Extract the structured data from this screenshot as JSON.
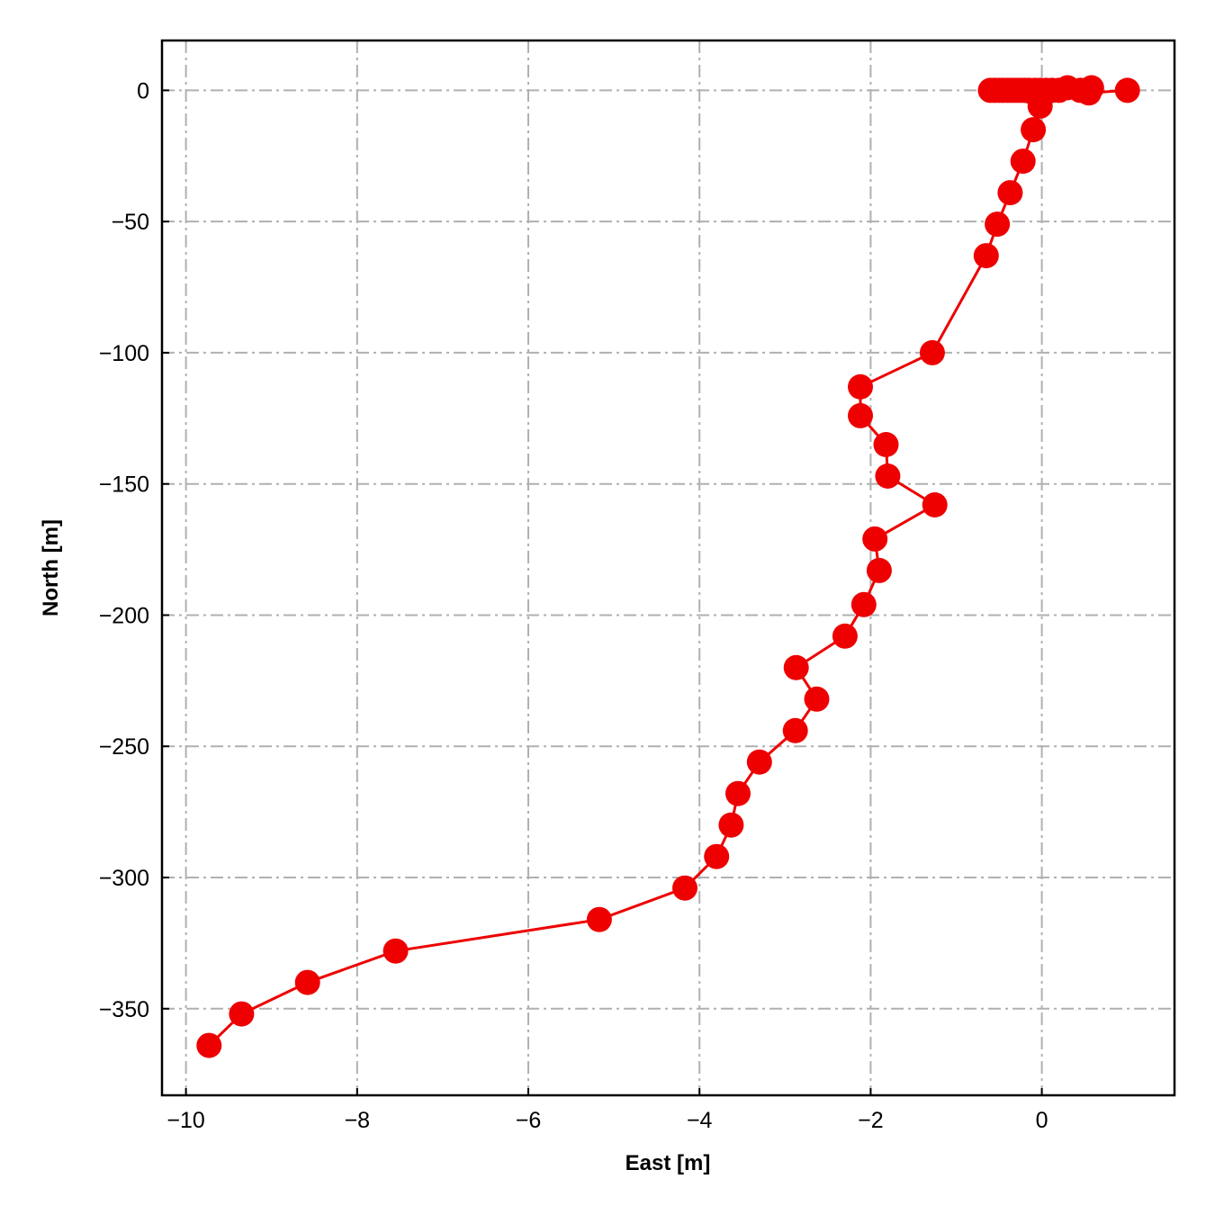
{
  "chart_data": {
    "type": "scatter",
    "xlabel": "East [m]",
    "ylabel": "North [m]",
    "xlim": [
      -10.28,
      1.55
    ],
    "ylim": [
      -383,
      19
    ],
    "xticks": [
      -10,
      -8,
      -6,
      -4,
      -2,
      0
    ],
    "xtick_labels": [
      "−10",
      "−8",
      "−6",
      "−4",
      "−2",
      "0"
    ],
    "yticks": [
      0,
      -50,
      -100,
      -150,
      -200,
      -250,
      -300,
      -350
    ],
    "ytick_labels": [
      "0",
      "−50",
      "−100",
      "−150",
      "−200",
      "−250",
      "−300",
      "−350"
    ],
    "grid": true,
    "series": [
      {
        "color": "#ee0000",
        "line": true,
        "marker": "circle",
        "x": [
          1.0,
          0.55,
          0.58,
          0.45,
          0.3,
          0.2,
          0.12,
          0.05,
          -0.02,
          -0.08,
          -0.15,
          -0.2,
          -0.25,
          -0.3,
          -0.35,
          -0.4,
          -0.45,
          -0.5,
          -0.55,
          -0.6,
          -0.02,
          -0.1,
          -0.22,
          -0.37,
          -0.52,
          -0.65,
          -1.28,
          -2.12,
          -2.12,
          -1.82,
          -1.8,
          -1.25,
          -1.95,
          -1.9,
          -2.08,
          -2.3,
          -2.87,
          -2.63,
          -2.88,
          -3.3,
          -3.55,
          -3.63,
          -3.8,
          -4.17,
          -5.17,
          -7.55,
          -8.58,
          -9.35,
          -9.73
        ],
        "y": [
          0,
          -1,
          1,
          0,
          1,
          0,
          0,
          0,
          0,
          0,
          0,
          0,
          0,
          0,
          0,
          0,
          0,
          0,
          0,
          0,
          -6,
          -15,
          -27,
          -39,
          -51,
          -63,
          -100,
          -113,
          -124,
          -135,
          -147,
          -158,
          -171,
          -183,
          -196,
          -208,
          -220,
          -232,
          -244,
          -256,
          -268,
          -280,
          -292,
          -304,
          -316,
          -328,
          -340,
          -352,
          -364
        ]
      }
    ]
  }
}
